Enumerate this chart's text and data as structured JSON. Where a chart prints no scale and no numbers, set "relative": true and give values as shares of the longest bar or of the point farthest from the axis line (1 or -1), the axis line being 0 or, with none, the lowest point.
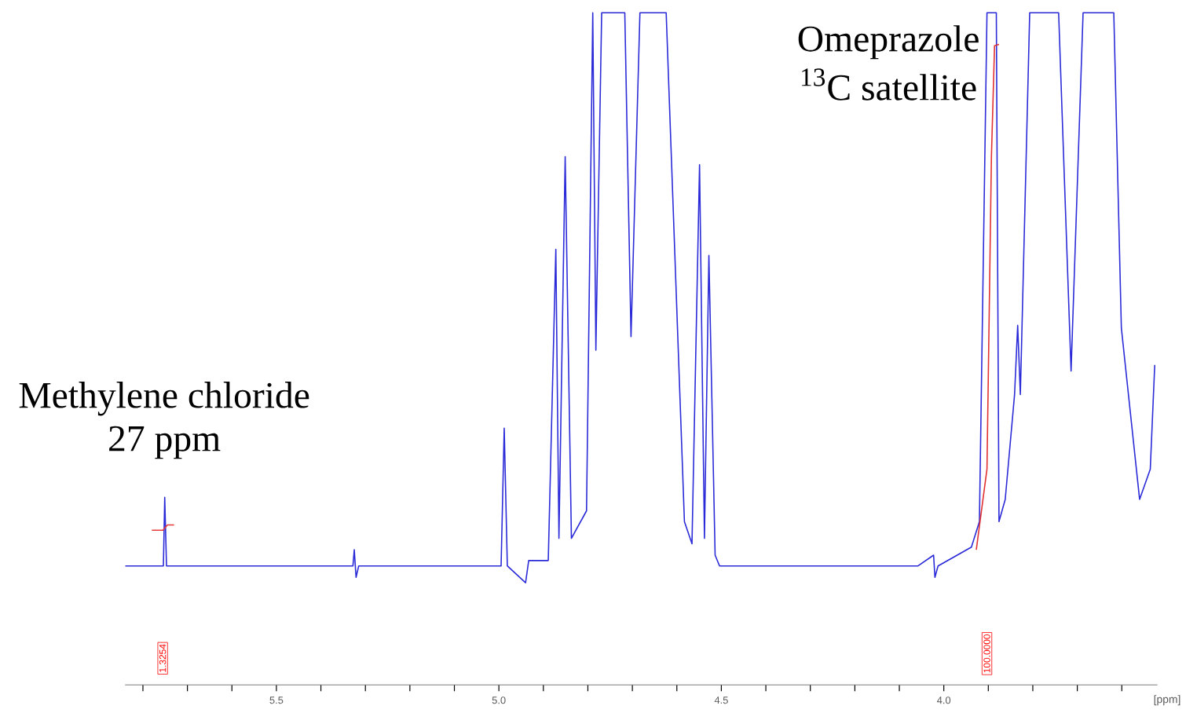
{
  "chart_data": {
    "type": "line",
    "relative": true,
    "xlabel": "[ppm]",
    "xlim": [
      5.84,
      3.52
    ],
    "xticks": [
      {
        "value": 5.8,
        "label": null
      },
      {
        "value": 5.7,
        "label": null
      },
      {
        "value": 5.6,
        "label": null
      },
      5.5,
      {
        "value": 5.4,
        "label": null
      },
      {
        "value": 5.3,
        "label": null
      },
      {
        "value": 5.2,
        "label": null
      },
      {
        "value": 5.1,
        "label": null
      },
      {
        "value": 5,
        "label": "5.0"
      },
      {
        "value": 4.9,
        "label": null
      },
      {
        "value": 4.8,
        "label": null
      },
      {
        "value": 4.7,
        "label": null
      },
      {
        "value": 4.6,
        "label": null
      },
      4.5,
      {
        "value": 4.4,
        "label": null
      },
      {
        "value": 4.3,
        "label": null
      },
      {
        "value": 4.2,
        "label": null
      },
      {
        "value": 4.1,
        "label": null
      },
      {
        "value": 4,
        "label": "4.0"
      },
      {
        "value": 3.9,
        "label": null
      },
      {
        "value": 3.8,
        "label": null
      },
      {
        "value": 3.7,
        "label": null
      },
      {
        "value": 3.6,
        "label": null
      }
    ],
    "annotations": [
      "Methylene chloride",
      "27 ppm",
      "Omeprazole",
      "$^{13}$C satellite",
      "1.3254",
      "100.0000"
    ],
    "series": [
      {
        "color": "#2a2ad8",
        "x": [
          5.84,
          5.754,
          5.751,
          5.747,
          5.328,
          5.325,
          5.321,
          5.315,
          5.054,
          4.995,
          4.988,
          4.981,
          4.94,
          4.933,
          4.889,
          4.872,
          4.865,
          4.851,
          4.837,
          4.803,
          4.789,
          4.782,
          4.769,
          4.717,
          4.703,
          4.683,
          4.624,
          4.583,
          4.566,
          4.549,
          4.538,
          4.528,
          4.514,
          4.504,
          4.058,
          4.023,
          4.02,
          4.013,
          3.938,
          3.92,
          3.903,
          3.882,
          3.876,
          3.862,
          3.841,
          3.834,
          3.828,
          3.807,
          3.742,
          3.714,
          3.687,
          3.618,
          3.601,
          3.56,
          3.536,
          3.526
        ],
        "values": [
          0.177,
          0.177,
          0.279,
          0.177,
          0.177,
          0.201,
          0.16,
          0.177,
          0.177,
          0.177,
          0.382,
          0.177,
          0.152,
          0.185,
          0.185,
          0.648,
          0.218,
          0.786,
          0.218,
          0.259,
          1,
          0.498,
          1,
          1,
          0.518,
          1,
          1,
          0.243,
          0.21,
          0.774,
          0.218,
          0.639,
          0.193,
          0.177,
          0.177,
          0.193,
          0.16,
          0.177,
          0.205,
          0.243,
          1,
          1,
          0.243,
          0.276,
          0.432,
          0.535,
          0.432,
          1,
          1,
          0.467,
          1,
          1,
          0.531,
          0.276,
          0.321,
          0.476
        ]
      },
      {
        "color": "#e03030",
        "x": [
          3.927,
          3.903,
          3.893,
          3.886,
          3.876
        ],
        "values": [
          0.201,
          0.321,
          0.786,
          0.951,
          0.953
        ]
      },
      {
        "color": "#e83a3a",
        "x": [
          5.78,
          5.755,
          5.745,
          5.73
        ],
        "values": [
          0.23,
          0.23,
          0.238,
          0.238
        ]
      }
    ]
  }
}
